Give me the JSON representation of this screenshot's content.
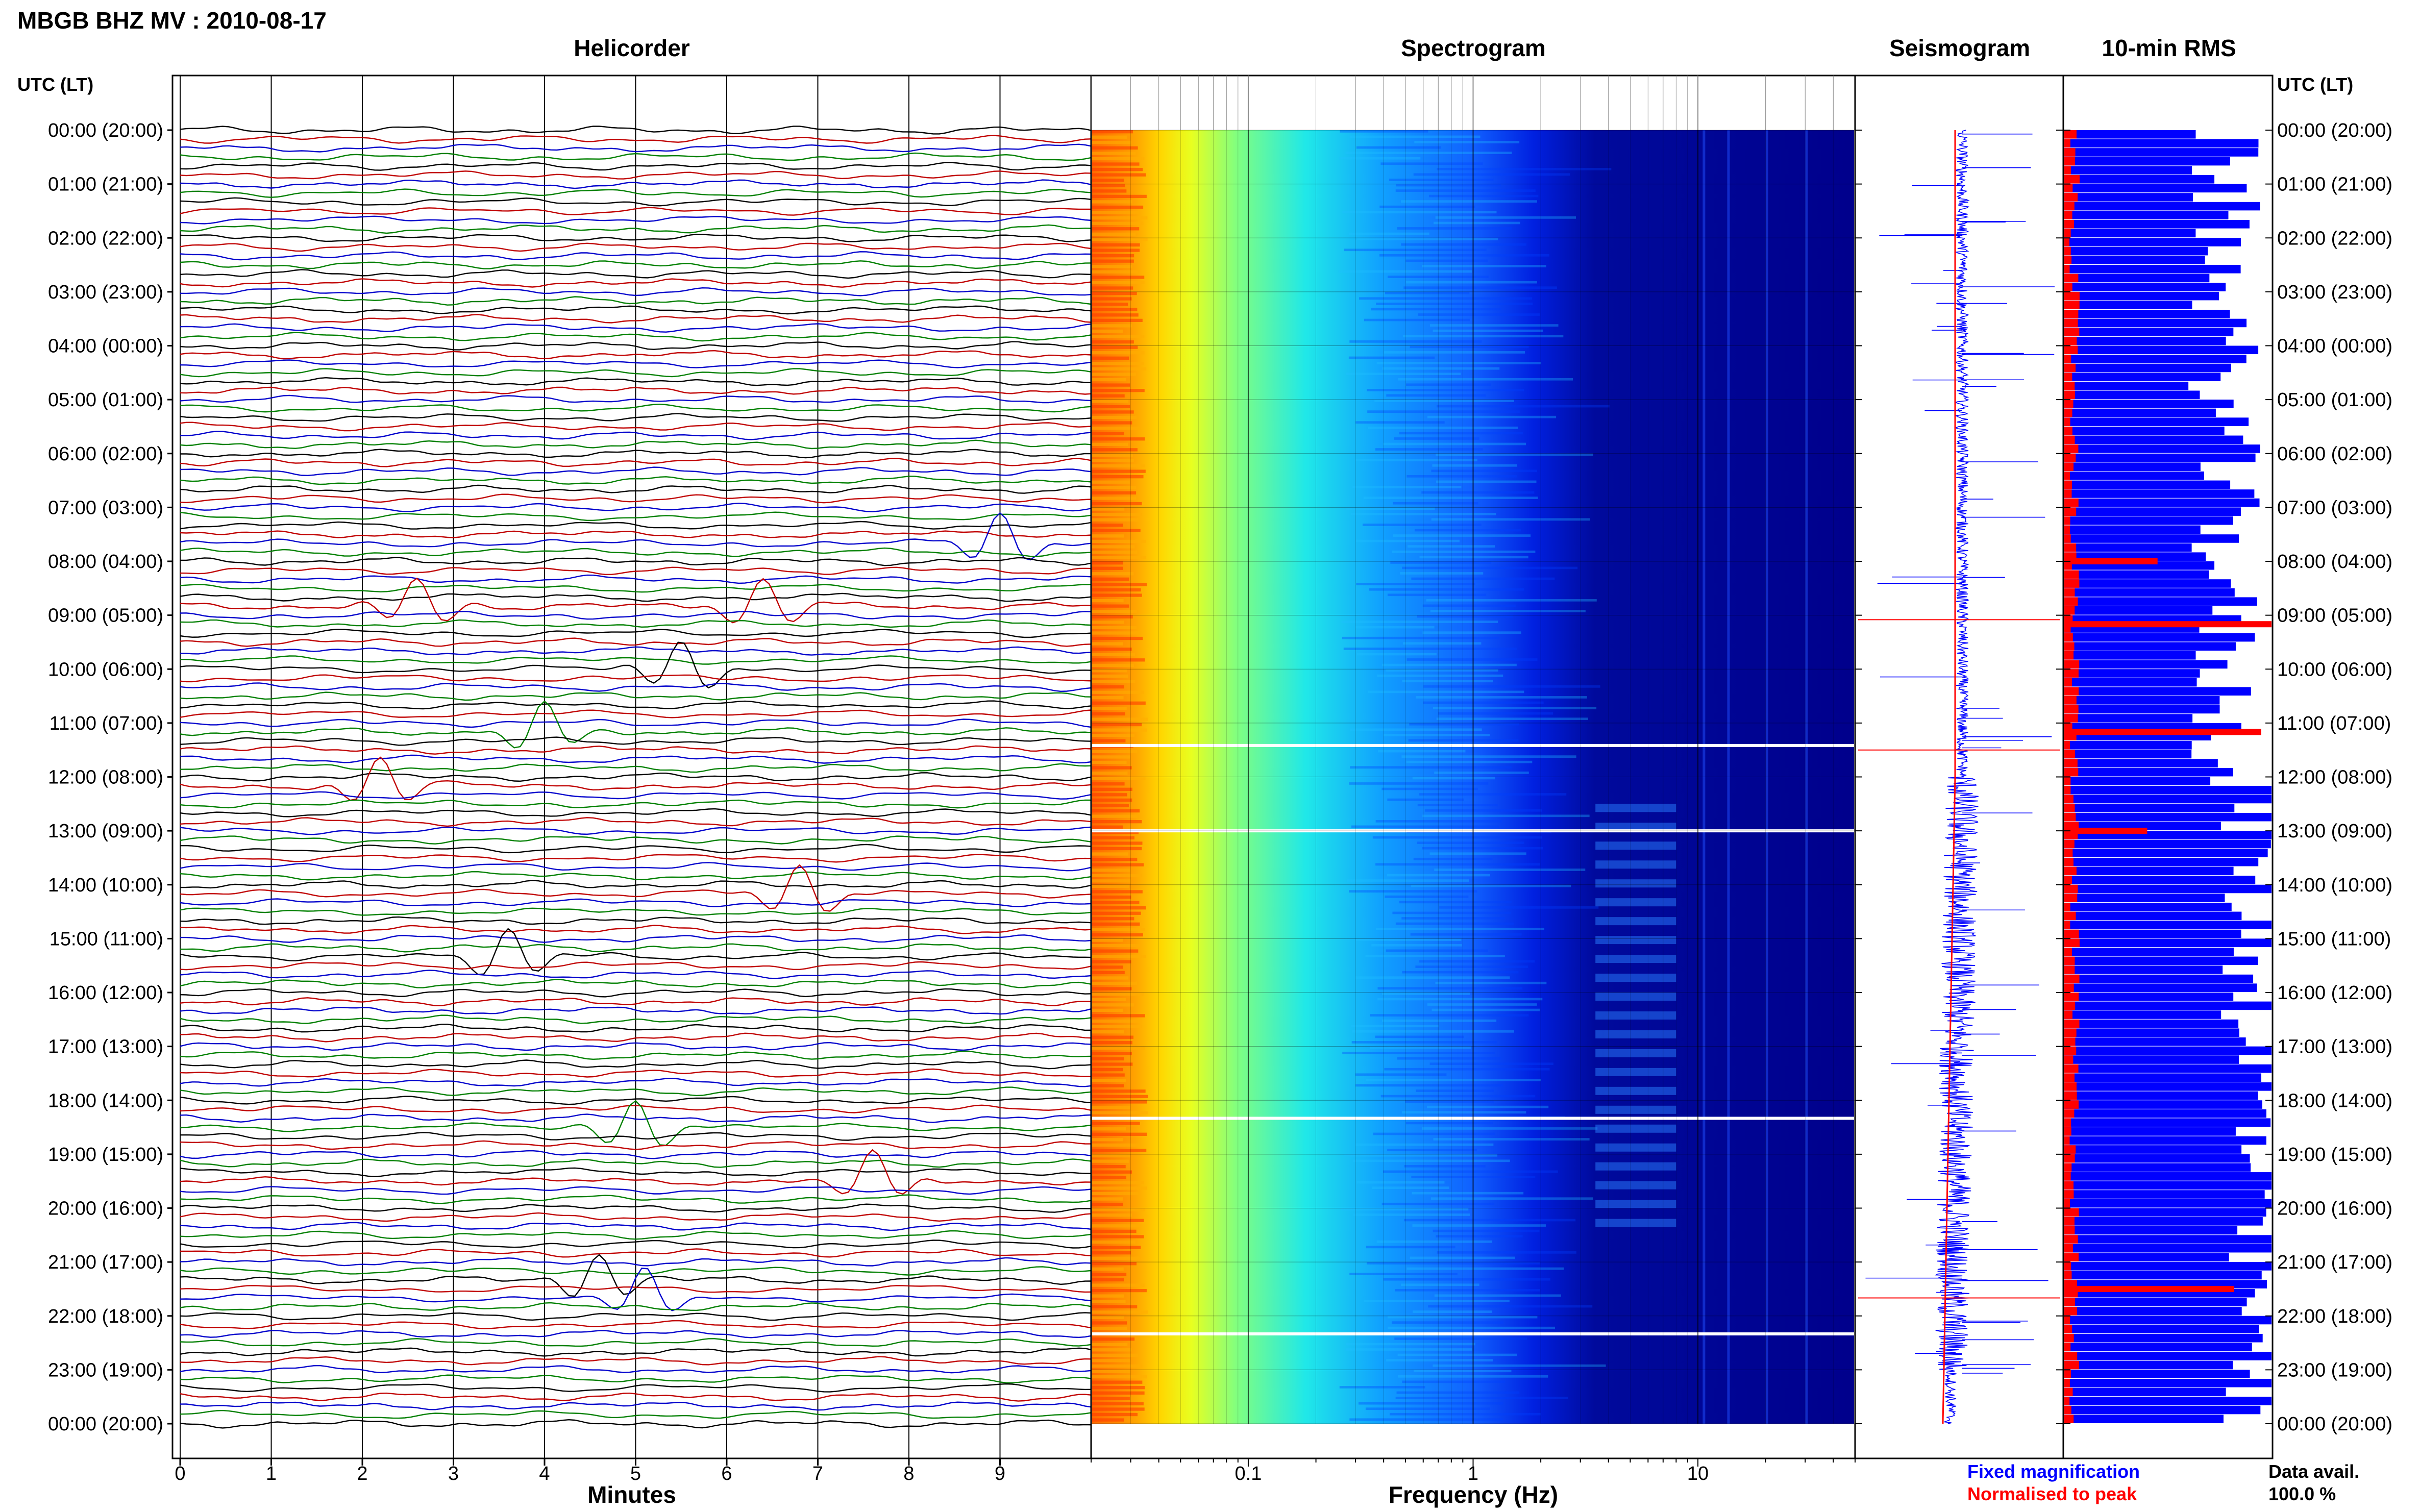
{
  "title": "MBGB BHZ MV : 2010-08-17",
  "colors": {
    "fixed": "#0000ff",
    "normalised": "#ff0000",
    "trace_cycle": [
      "#000000",
      "#c00000",
      "#0000cc",
      "#008000"
    ]
  },
  "labels": {
    "utc_left": "UTC (LT)",
    "utc_right": "UTC (LT)",
    "legend_fixed": "Fixed magnification",
    "legend_normalised": "Normalised to peak",
    "data_avail_label": "Data avail.",
    "data_avail_value": "100.0 %"
  },
  "time_labels": [
    "00:00 (20:00)",
    "01:00 (21:00)",
    "02:00 (22:00)",
    "03:00 (23:00)",
    "04:00 (00:00)",
    "05:00 (01:00)",
    "06:00 (02:00)",
    "07:00 (03:00)",
    "08:00 (04:00)",
    "09:00 (05:00)",
    "10:00 (06:00)",
    "11:00 (07:00)",
    "12:00 (08:00)",
    "13:00 (09:00)",
    "14:00 (10:00)",
    "15:00 (11:00)",
    "16:00 (12:00)",
    "17:00 (13:00)",
    "18:00 (14:00)",
    "19:00 (15:00)",
    "20:00 (16:00)",
    "21:00 (17:00)",
    "22:00 (18:00)",
    "23:00 (19:00)",
    "00:00 (20:00)"
  ],
  "chart_data": [
    {
      "type": "line",
      "title": "Helicorder",
      "xlabel": "Minutes",
      "x_ticks": [
        "0",
        "1",
        "2",
        "3",
        "4",
        "5",
        "6",
        "7",
        "8",
        "9"
      ],
      "xlim": [
        0,
        10
      ],
      "rows": 144,
      "row_minutes": 10,
      "events": [
        {
          "time": "07:40",
          "minute": 9.0
        },
        {
          "time": "08:50",
          "minute": 2.6
        },
        {
          "time": "08:50",
          "minute": 6.4
        },
        {
          "time": "10:00",
          "minute": 5.5
        },
        {
          "time": "11:10",
          "minute": 4.0
        },
        {
          "time": "12:10",
          "minute": 2.2
        },
        {
          "time": "14:10",
          "minute": 6.8
        },
        {
          "time": "15:20",
          "minute": 3.6
        },
        {
          "time": "18:30",
          "minute": 5.0
        },
        {
          "time": "19:30",
          "minute": 7.6
        },
        {
          "time": "21:20",
          "minute": 4.6
        },
        {
          "time": "21:40",
          "minute": 5.1
        }
      ]
    },
    {
      "type": "heatmap",
      "title": "Spectrogram",
      "xlabel": "Frequency (Hz)",
      "x_scale": "log",
      "xlim": [
        0.02,
        50
      ],
      "x_ticks": [
        "0.1",
        "1",
        "10"
      ],
      "colormap": [
        "#00008c",
        "#0000ff",
        "#0080ff",
        "#00ffff",
        "#80ff80",
        "#ffff00",
        "#ff8000",
        "#ff0000"
      ],
      "gaps": [
        "11:25",
        "13:00",
        "18:20",
        "22:20"
      ],
      "tremor_band_hz": [
        3.5,
        8.0
      ]
    },
    {
      "type": "line",
      "title": "Seismogram",
      "series": [
        {
          "name": "Fixed magnification",
          "color": "#0000ff"
        },
        {
          "name": "Normalised to peak",
          "color": "#ff0000"
        }
      ]
    },
    {
      "type": "bar",
      "title": "10-min RMS",
      "orientation": "horizontal",
      "series": [
        {
          "name": "Fixed magnification",
          "color": "#0000ff"
        },
        {
          "name": "Normalised to peak",
          "color": "#ff0000"
        }
      ]
    }
  ]
}
